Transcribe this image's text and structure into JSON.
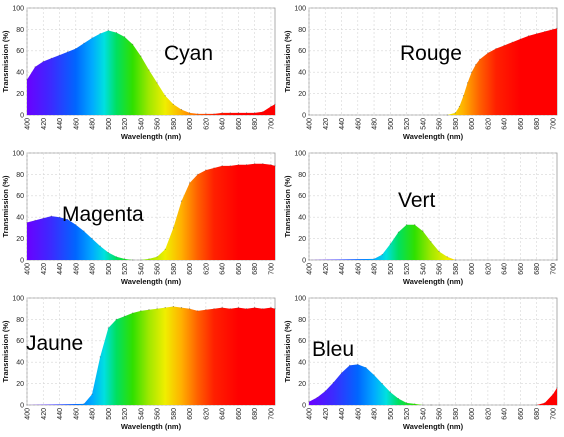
{
  "chart_data": [
    {
      "type": "area",
      "title": "Cyan",
      "xlabel": "Wavelength (nm)",
      "ylabel": "Transmission (%)",
      "xlim": [
        400,
        705
      ],
      "ylim": [
        0,
        100
      ],
      "x_ticks": [
        400,
        420,
        440,
        460,
        480,
        500,
        520,
        540,
        560,
        580,
        600,
        620,
        640,
        660,
        680,
        700
      ],
      "y_ticks": [
        0,
        20,
        40,
        60,
        80,
        100
      ],
      "grid": true,
      "x": [
        400,
        410,
        420,
        430,
        440,
        450,
        460,
        470,
        480,
        490,
        500,
        510,
        520,
        530,
        540,
        550,
        560,
        570,
        580,
        590,
        600,
        610,
        620,
        630,
        640,
        650,
        660,
        670,
        680,
        690,
        700,
        705
      ],
      "y": [
        33,
        45,
        50,
        53,
        56,
        59,
        62,
        67,
        72,
        76,
        79,
        77,
        73,
        66,
        55,
        42,
        30,
        18,
        10,
        5,
        2,
        1,
        1,
        1,
        2,
        2,
        2,
        2,
        2,
        3,
        8,
        10
      ]
    },
    {
      "type": "area",
      "title": "Rouge",
      "xlabel": "Wavelength (nm)",
      "ylabel": "Transmission (%)",
      "xlim": [
        400,
        705
      ],
      "ylim": [
        0,
        100
      ],
      "x_ticks": [
        400,
        420,
        440,
        460,
        480,
        500,
        520,
        540,
        560,
        580,
        600,
        620,
        640,
        660,
        680,
        700
      ],
      "y_ticks": [
        0,
        20,
        40,
        60,
        80,
        100
      ],
      "grid": true,
      "x": [
        400,
        570,
        580,
        585,
        590,
        595,
        600,
        605,
        610,
        620,
        630,
        640,
        650,
        660,
        670,
        680,
        690,
        700,
        705
      ],
      "y": [
        0,
        0,
        2,
        8,
        18,
        30,
        40,
        47,
        52,
        58,
        62,
        65,
        68,
        71,
        74,
        76,
        78,
        80,
        81
      ]
    },
    {
      "type": "area",
      "title": "Magenta",
      "xlabel": "Wavelength (nm)",
      "ylabel": "Transmission (%)",
      "xlim": [
        400,
        705
      ],
      "ylim": [
        0,
        100
      ],
      "x_ticks": [
        400,
        420,
        440,
        460,
        480,
        500,
        520,
        540,
        560,
        580,
        600,
        620,
        640,
        660,
        680,
        700
      ],
      "y_ticks": [
        0,
        20,
        40,
        60,
        80,
        100
      ],
      "grid": true,
      "x": [
        400,
        410,
        420,
        430,
        440,
        450,
        460,
        470,
        480,
        490,
        500,
        510,
        520,
        530,
        540,
        550,
        560,
        570,
        580,
        590,
        600,
        610,
        620,
        630,
        640,
        650,
        660,
        670,
        680,
        690,
        700,
        705
      ],
      "y": [
        35,
        37,
        39,
        41,
        40,
        38,
        33,
        27,
        20,
        13,
        7,
        3,
        1,
        0,
        0,
        1,
        3,
        10,
        30,
        55,
        72,
        80,
        84,
        86,
        88,
        88,
        89,
        89,
        90,
        90,
        89,
        88
      ]
    },
    {
      "type": "area",
      "title": "Vert",
      "xlabel": "Wavelength (nm)",
      "ylabel": "Transmission (%)",
      "xlim": [
        400,
        705
      ],
      "ylim": [
        0,
        100
      ],
      "x_ticks": [
        400,
        420,
        440,
        460,
        480,
        500,
        520,
        540,
        560,
        580,
        600,
        620,
        640,
        660,
        680,
        700
      ],
      "y_ticks": [
        0,
        20,
        40,
        60,
        80,
        100
      ],
      "grid": true,
      "x": [
        400,
        480,
        490,
        500,
        510,
        520,
        530,
        540,
        550,
        560,
        570,
        580,
        705
      ],
      "y": [
        0,
        1,
        5,
        15,
        26,
        33,
        33,
        27,
        17,
        8,
        3,
        0,
        0
      ]
    },
    {
      "type": "area",
      "title": "Jaune",
      "xlabel": "Wavelength (nm)",
      "ylabel": "Transmission (%)",
      "xlim": [
        400,
        705
      ],
      "ylim": [
        0,
        100
      ],
      "x_ticks": [
        400,
        420,
        440,
        460,
        480,
        500,
        520,
        540,
        560,
        580,
        600,
        620,
        640,
        660,
        680,
        700
      ],
      "y_ticks": [
        0,
        20,
        40,
        60,
        80,
        100
      ],
      "grid": true,
      "x": [
        400,
        470,
        480,
        490,
        500,
        510,
        520,
        530,
        540,
        550,
        560,
        570,
        580,
        590,
        600,
        610,
        620,
        630,
        640,
        650,
        660,
        670,
        680,
        690,
        700,
        705
      ],
      "y": [
        0,
        1,
        10,
        45,
        72,
        80,
        83,
        86,
        88,
        89,
        90,
        91,
        92,
        91,
        90,
        88,
        89,
        90,
        91,
        90,
        91,
        90,
        91,
        90,
        91,
        90
      ]
    },
    {
      "type": "area",
      "title": "Bleu",
      "xlabel": "Wavelength (nm)",
      "ylabel": "Transmission (%)",
      "xlim": [
        400,
        705
      ],
      "ylim": [
        0,
        100
      ],
      "x_ticks": [
        400,
        420,
        440,
        460,
        480,
        500,
        520,
        540,
        560,
        580,
        600,
        620,
        640,
        660,
        680,
        700
      ],
      "y_ticks": [
        0,
        20,
        40,
        60,
        80,
        100
      ],
      "grid": true,
      "x": [
        400,
        410,
        420,
        430,
        440,
        450,
        460,
        470,
        480,
        490,
        500,
        510,
        520,
        530,
        540,
        550,
        560,
        680,
        690,
        700,
        705
      ],
      "y": [
        3,
        7,
        13,
        21,
        30,
        37,
        38,
        35,
        28,
        20,
        12,
        6,
        2,
        1,
        0,
        0,
        0,
        0,
        2,
        10,
        16
      ]
    }
  ]
}
